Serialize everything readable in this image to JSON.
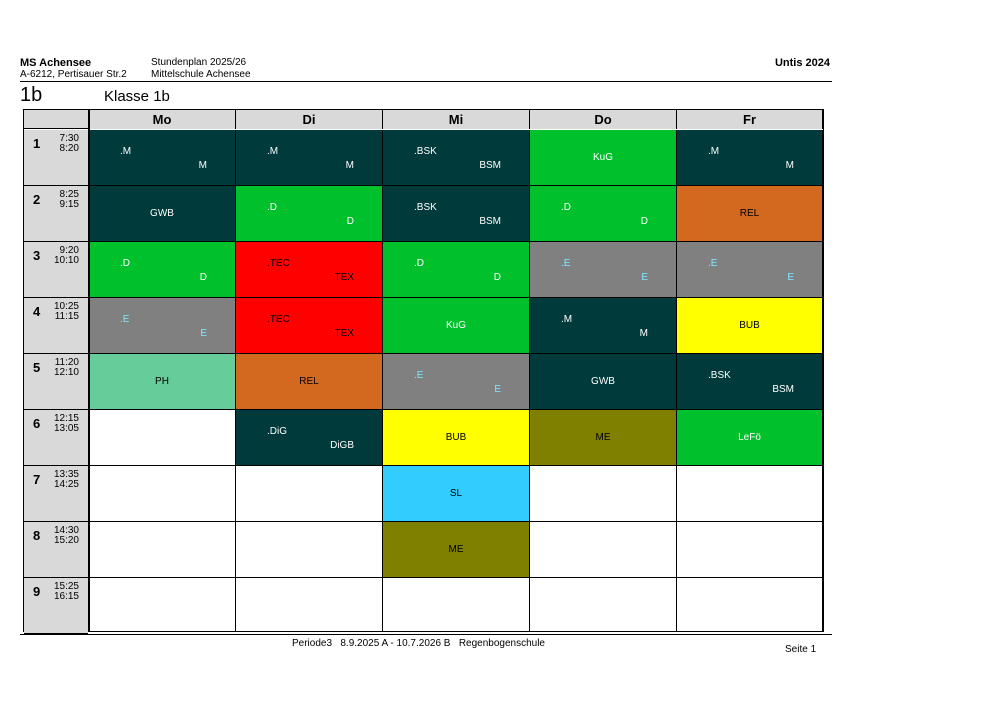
{
  "header": {
    "school_name": "MS Achensee",
    "school_address": "A-6212, Pertisauer Str.2",
    "plan_title": "Stundenplan 2025/26",
    "school_full": "Mittelschule Achensee",
    "software": "Untis 2024",
    "class_code": "1b",
    "class_title": "Klasse 1b"
  },
  "days": [
    "Mo",
    "Di",
    "Mi",
    "Do",
    "Fr"
  ],
  "periods": [
    {
      "num": "1",
      "start": "7:30",
      "end": "8:20"
    },
    {
      "num": "2",
      "start": "8:25",
      "end": "9:15"
    },
    {
      "num": "3",
      "start": "9:20",
      "end": "10:10"
    },
    {
      "num": "4",
      "start": "10:25",
      "end": "11:15"
    },
    {
      "num": "5",
      "start": "11:20",
      "end": "12:10"
    },
    {
      "num": "6",
      "start": "12:15",
      "end": "13:05"
    },
    {
      "num": "7",
      "start": "13:35",
      "end": "14:25"
    },
    {
      "num": "8",
      "start": "14:30",
      "end": "15:20"
    },
    {
      "num": "9",
      "start": "15:25",
      "end": "16:15"
    }
  ],
  "colors": {
    "dark": "#003a3a",
    "green": "#00c02c",
    "orange": "#d2691e",
    "red": "#ff0000",
    "gray": "#808080",
    "yellow": "#ffff00",
    "mint": "#66cc99",
    "olive": "#808000",
    "cyan": "#33ccff"
  },
  "lessons": [
    [
      {
        "color": "dark",
        "tl": ".M",
        "br": "M"
      },
      {
        "color": "dark",
        "tl": ".M",
        "br": "M"
      },
      {
        "color": "dark",
        "tl": ".BSK",
        "br": "BSM"
      },
      {
        "color": "green",
        "center": "KuG"
      },
      {
        "color": "dark",
        "tl": ".M",
        "br": "M"
      }
    ],
    [
      {
        "color": "dark",
        "center": "GWB"
      },
      {
        "color": "green",
        "tl": ".D",
        "br": "D"
      },
      {
        "color": "dark",
        "tl": ".BSK",
        "br": "BSM"
      },
      {
        "color": "green",
        "tl": ".D",
        "br": "D"
      },
      {
        "color": "orange",
        "center": "REL",
        "dark_text": true
      }
    ],
    [
      {
        "color": "green",
        "tl": ".D",
        "br": "D"
      },
      {
        "color": "red",
        "tl": ".TEC",
        "br": "TEX",
        "dark_text": true
      },
      {
        "color": "green",
        "tl": ".D",
        "br": "D"
      },
      {
        "color": "gray",
        "tl": ".E",
        "br": "E",
        "cyan_text": true
      },
      {
        "color": "gray",
        "tl": ".E",
        "br": "E",
        "cyan_text": true
      }
    ],
    [
      {
        "color": "gray",
        "tl": ".E",
        "br": "E",
        "cyan_text": true
      },
      {
        "color": "red",
        "tl": ".TEC",
        "br": "TEX",
        "dark_text": true
      },
      {
        "color": "green",
        "center": "KuG"
      },
      {
        "color": "dark",
        "tl": ".M",
        "br": "M"
      },
      {
        "color": "yellow",
        "center": "BUB",
        "dark_text": true
      }
    ],
    [
      {
        "color": "mint",
        "center": "PH",
        "dark_text": true
      },
      {
        "color": "orange",
        "center": "REL",
        "dark_text": true
      },
      {
        "color": "gray",
        "tl": ".E",
        "br": "E",
        "cyan_text": true
      },
      {
        "color": "dark",
        "center": "GWB"
      },
      {
        "color": "dark",
        "tl": ".BSK",
        "br": "BSM"
      }
    ],
    [
      null,
      {
        "color": "dark",
        "tl": ".DiG",
        "br": "DiGB"
      },
      {
        "color": "yellow",
        "center": "BUB",
        "dark_text": true
      },
      {
        "color": "olive",
        "center": "ME",
        "dark_text": true
      },
      {
        "color": "green",
        "center": "LeFö"
      }
    ],
    [
      null,
      null,
      {
        "color": "cyan",
        "center": "SL",
        "dark_text": true
      },
      null,
      null
    ],
    [
      null,
      null,
      {
        "color": "olive",
        "center": "ME",
        "dark_text": true
      },
      null,
      null
    ],
    [
      null,
      null,
      null,
      null,
      null
    ]
  ],
  "footer": {
    "period": "Periode3",
    "range": "8.9.2025 A - 10.7.2026 B",
    "school": "Regenbogenschule",
    "page": "Seite 1"
  }
}
